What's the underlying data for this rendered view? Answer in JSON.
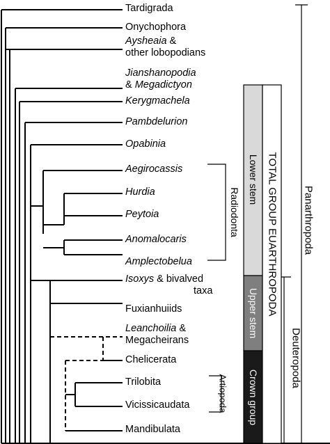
{
  "taxa": [
    {
      "line1": "Tardigrada",
      "line1_italic": false
    },
    {
      "line1": "Onychophora",
      "line1_italic": false
    },
    {
      "line1_it": "Aysheaia",
      "line1_rest": " &",
      "line2": "other lobopodians"
    },
    {
      "line1_it": "Jianshanopodia",
      "line2_pre": "& ",
      "line2_it": "Megadictyon"
    },
    {
      "line1": "Kerygmachela",
      "line1_italic": true
    },
    {
      "line1": "Pambdelurion",
      "line1_italic": true
    },
    {
      "line1": "Opabinia",
      "line1_italic": true
    },
    {
      "line1": "Aegirocassis",
      "line1_italic": true
    },
    {
      "line1": "Hurdia",
      "line1_italic": true
    },
    {
      "line1": "Peytoia",
      "line1_italic": true
    },
    {
      "line1": "Anomalocaris",
      "line1_italic": true
    },
    {
      "line1": "Amplectobelua",
      "line1_italic": true
    },
    {
      "line1_it": "Isoxys",
      "line1_rest": " & bivalved",
      "line2": "taxa"
    },
    {
      "line1": "Fuxianhuiids",
      "line1_italic": false
    },
    {
      "line1_it": "Leanchoilia",
      "line1_rest": " &",
      "line2": "Megacheirans"
    },
    {
      "line1": "Chelicerata",
      "line1_italic": false
    },
    {
      "line1": "Trilobita",
      "line1_italic": false
    },
    {
      "line1": "Vicissicaudata",
      "line1_italic": false
    },
    {
      "line1": "Mandibulata",
      "line1_italic": false
    }
  ],
  "brackets": {
    "radiodonta": "Radiodonta",
    "artiopoda": "Artiopoda",
    "panarthropoda": "Panarthropoda",
    "deuteropoda": "Deuteropoda"
  },
  "bar": {
    "lower_stem": "Lower stem",
    "upper_stem": "Upper stem",
    "crown_group": "Crown group",
    "total_group": "TOTAL GROUP EUARTHROPODA",
    "colors": {
      "lower": "#d9d9d9",
      "upper": "#7f7f7f",
      "crown": "#1a1a1a"
    }
  }
}
